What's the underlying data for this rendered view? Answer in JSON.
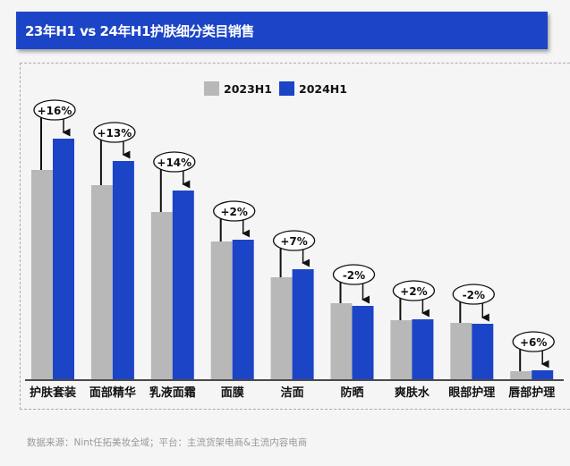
{
  "header": {
    "title": "23年H1 vs 24年H1护肤细分类目销售"
  },
  "footer": {
    "source": "数据来源：Nint任拓美妆全域；平台：主流货架电商&主流内容电商"
  },
  "chart_data": {
    "type": "bar",
    "title": "23年H1 vs 24年H1护肤细分类目销售",
    "categories": [
      "护肤套装",
      "面部精华",
      "乳液面霜",
      "面膜",
      "洁面",
      "防晒",
      "爽肤水",
      "眼部护理",
      "唇部护理"
    ],
    "series": [
      {
        "name": "2023H1",
        "color": "#b8b8b8",
        "values": [
          234,
          217,
          187,
          154,
          114,
          85,
          66,
          63,
          9
        ]
      },
      {
        "name": "2024H1",
        "color": "#1c44c6",
        "values": [
          269,
          244,
          211,
          156,
          123,
          82,
          67,
          62,
          10
        ]
      }
    ],
    "growth_labels": [
      "+16%",
      "+13%",
      "+14%",
      "+2%",
      "+7%",
      "-2%",
      "+2%",
      "-2%",
      "+6%"
    ],
    "legend": "top-center",
    "grid": false,
    "y_axis_shown": false
  }
}
